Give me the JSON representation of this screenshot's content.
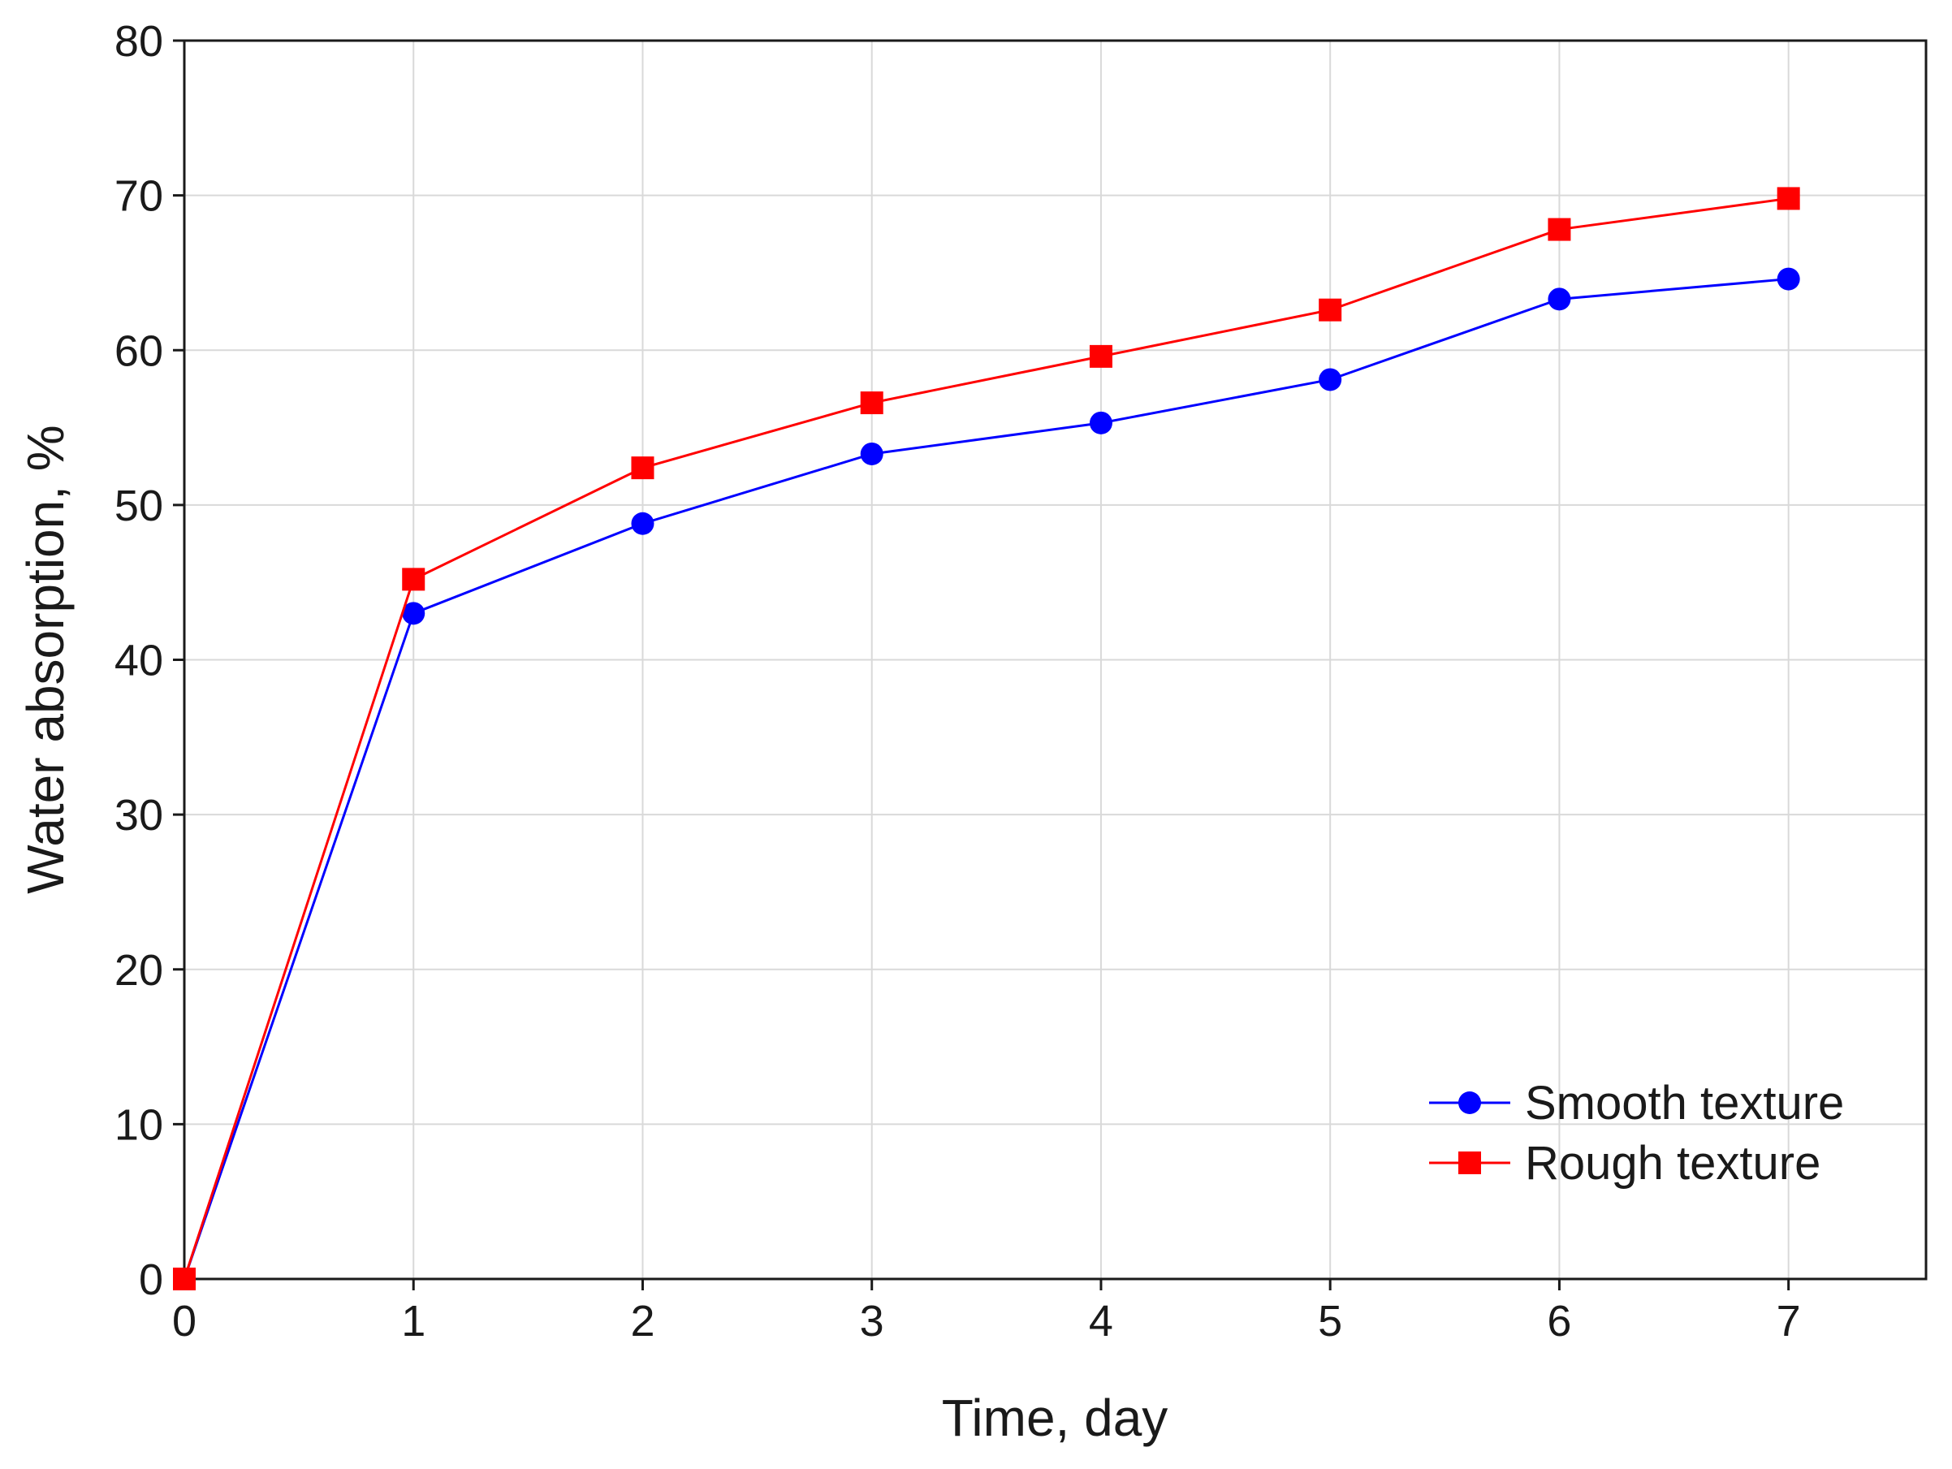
{
  "chart_data": {
    "type": "line",
    "title": "",
    "xlabel": "Time, day",
    "ylabel": "Water absorption, %",
    "xlim": [
      0,
      7.6
    ],
    "ylim": [
      0,
      80
    ],
    "x": [
      0,
      1,
      2,
      3,
      4,
      5,
      6,
      7
    ],
    "x_ticks": [
      "0",
      "1",
      "2",
      "3",
      "4",
      "5",
      "6",
      "7"
    ],
    "y_ticks": [
      "0",
      "10",
      "20",
      "30",
      "40",
      "50",
      "60",
      "70",
      "80"
    ],
    "grid": true,
    "legend_position": "bottom-right",
    "series": [
      {
        "name": "Smooth texture",
        "marker": "circle",
        "color": "#0000ff",
        "values": [
          0,
          43.0,
          48.8,
          53.3,
          55.3,
          58.1,
          63.3,
          64.6
        ]
      },
      {
        "name": "Rough texture",
        "marker": "square",
        "color": "#ff0000",
        "values": [
          0,
          45.2,
          52.4,
          56.6,
          59.6,
          62.6,
          67.8,
          69.8
        ]
      }
    ]
  }
}
